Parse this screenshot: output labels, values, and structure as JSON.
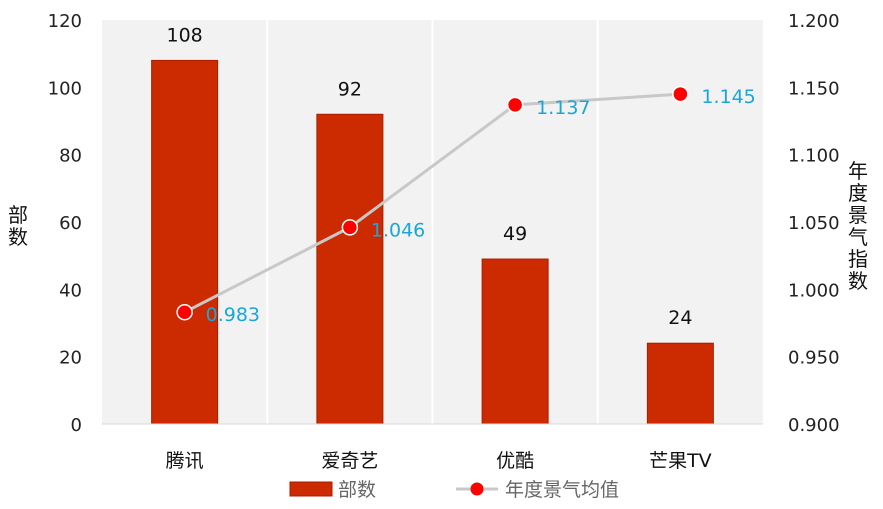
{
  "chart_data": {
    "type": "bar",
    "categories": [
      "腾讯",
      "爱奇艺",
      "优酷",
      "芒果TV"
    ],
    "series": [
      {
        "name": "部数",
        "type": "bar",
        "axis": "left",
        "values": [
          108,
          92,
          49,
          24
        ],
        "color": "#cc2a00"
      },
      {
        "name": "年度景气均值",
        "type": "line",
        "axis": "right",
        "values": [
          0.983,
          1.046,
          1.137,
          1.145
        ],
        "color": "#c8c8c8",
        "marker_color": "#ff0000"
      }
    ],
    "ylabel": "部数",
    "y2label": "年度景气指数",
    "ylim": [
      0,
      120
    ],
    "yticks": [
      "0",
      "20",
      "40",
      "60",
      "80",
      "100",
      "120"
    ],
    "y2lim": [
      0.9,
      1.2
    ],
    "y2ticks": [
      "0.900",
      "0.950",
      "1.000",
      "1.050",
      "1.100",
      "1.150",
      "1.200"
    ],
    "bar_labels": [
      "108",
      "92",
      "49",
      "24"
    ],
    "line_labels": [
      "0.983",
      "1.046",
      "1.137",
      "1.145"
    ],
    "grid": "vertical",
    "legend_position": "bottom"
  }
}
